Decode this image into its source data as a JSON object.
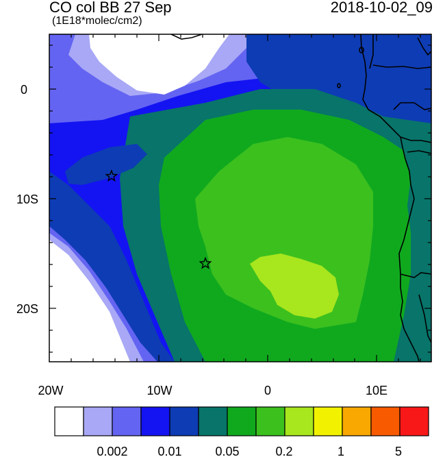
{
  "header": {
    "title": "CO col BB 27 Sep",
    "date": "2018-10-02_09",
    "units": "(1E18*molec/cm2)"
  },
  "axes": {
    "lat_labels": [
      "0",
      "10S",
      "20S"
    ],
    "lon_labels": [
      "20W",
      "10W",
      "0",
      "10E"
    ]
  },
  "markers": {
    "symbol": "star",
    "locations": [
      {
        "lon": -14.3,
        "lat": -8.0
      },
      {
        "lon": -5.7,
        "lat": -16.0
      }
    ]
  },
  "colorbar": {
    "colors": [
      "#ffffff",
      "#a8a8f6",
      "#6464f2",
      "#1414f2",
      "#0e3cb4",
      "#08746a",
      "#10a91e",
      "#3cc01e",
      "#a8e61e",
      "#f2f200",
      "#f8a800",
      "#f85a00",
      "#f81818"
    ],
    "labels": [
      "0.002",
      "0.01",
      "0.05",
      "0.2",
      "1",
      "5"
    ]
  }
}
